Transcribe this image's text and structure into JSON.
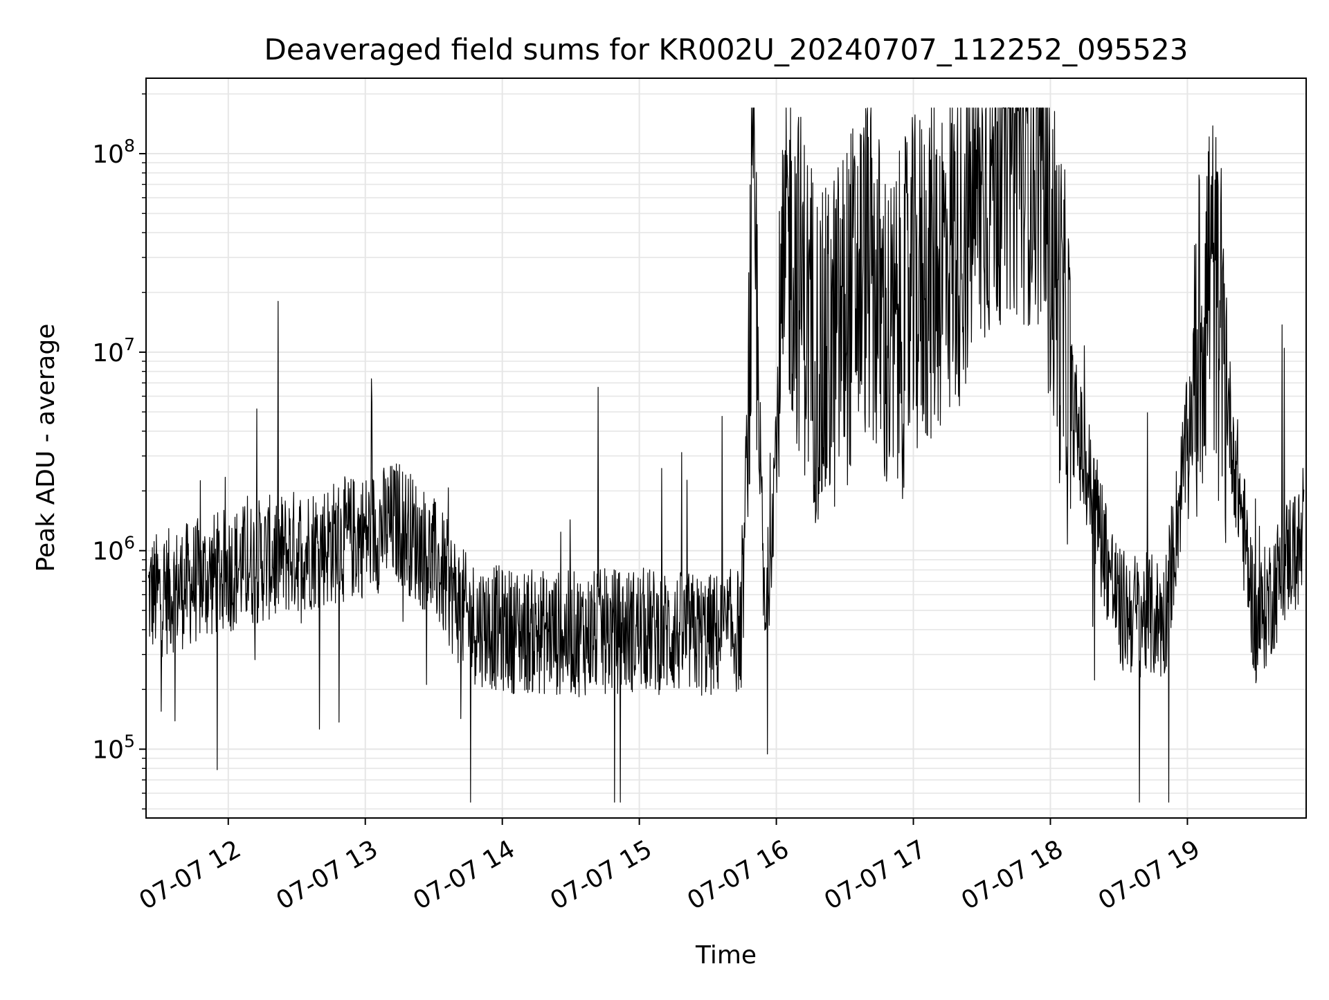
{
  "chart_data": {
    "type": "line",
    "title": "Deaveraged field sums for KR002U_20240707_112252_095523",
    "xlabel": "Time",
    "ylabel": "Peak ADU - average",
    "yscale": "log",
    "ylim": [
      45000,
      240000000
    ],
    "xlim": [
      "2024-07-07 11:24",
      "2024-07-07 19:52"
    ],
    "grid": true,
    "line_color": "#000000",
    "x_ticks": [
      {
        "time": "2024-07-07 12:00",
        "label": "07-07 12"
      },
      {
        "time": "2024-07-07 13:00",
        "label": "07-07 13"
      },
      {
        "time": "2024-07-07 14:00",
        "label": "07-07 14"
      },
      {
        "time": "2024-07-07 15:00",
        "label": "07-07 15"
      },
      {
        "time": "2024-07-07 16:00",
        "label": "07-07 16"
      },
      {
        "time": "2024-07-07 17:00",
        "label": "07-07 17"
      },
      {
        "time": "2024-07-07 18:00",
        "label": "07-07 18"
      },
      {
        "time": "2024-07-07 19:00",
        "label": "07-07 19"
      }
    ],
    "y_ticks": [
      {
        "value": 100000,
        "base": "10",
        "exp": "5"
      },
      {
        "value": 1000000,
        "base": "10",
        "exp": "6"
      },
      {
        "value": 10000000,
        "base": "10",
        "exp": "7"
      },
      {
        "value": 100000000,
        "base": "10",
        "exp": "8"
      }
    ],
    "series": [
      {
        "x": [
          "2024-07-07 11:30",
          "2024-07-07 12:00",
          "2024-07-07 12:30",
          "2024-07-07 13:00",
          "2024-07-07 13:15",
          "2024-07-07 13:30",
          "2024-07-07 13:45",
          "2024-07-07 14:00",
          "2024-07-07 14:30",
          "2024-07-07 15:00",
          "2024-07-07 15:30",
          "2024-07-07 15:45",
          "2024-07-07 15:50",
          "2024-07-07 15:55",
          "2024-07-07 16:05",
          "2024-07-07 16:20",
          "2024-07-07 16:40",
          "2024-07-07 16:50",
          "2024-07-07 17:00",
          "2024-07-07 17:20",
          "2024-07-07 17:40",
          "2024-07-07 17:55",
          "2024-07-07 18:10",
          "2024-07-07 18:30",
          "2024-07-07 18:50",
          "2024-07-07 19:10",
          "2024-07-07 19:30",
          "2024-07-07 19:45"
        ],
        "y": [
          600000,
          800000,
          1000000,
          1200000,
          1400000,
          900000,
          450000,
          400000,
          380000,
          400000,
          370000,
          400000,
          60000000,
          350000,
          40000000,
          8000000,
          30000000,
          10000000,
          20000000,
          40000000,
          120000000,
          100000000,
          5000000,
          500000,
          450000,
          30000000,
          400000,
          1000000
        ]
      }
    ]
  }
}
